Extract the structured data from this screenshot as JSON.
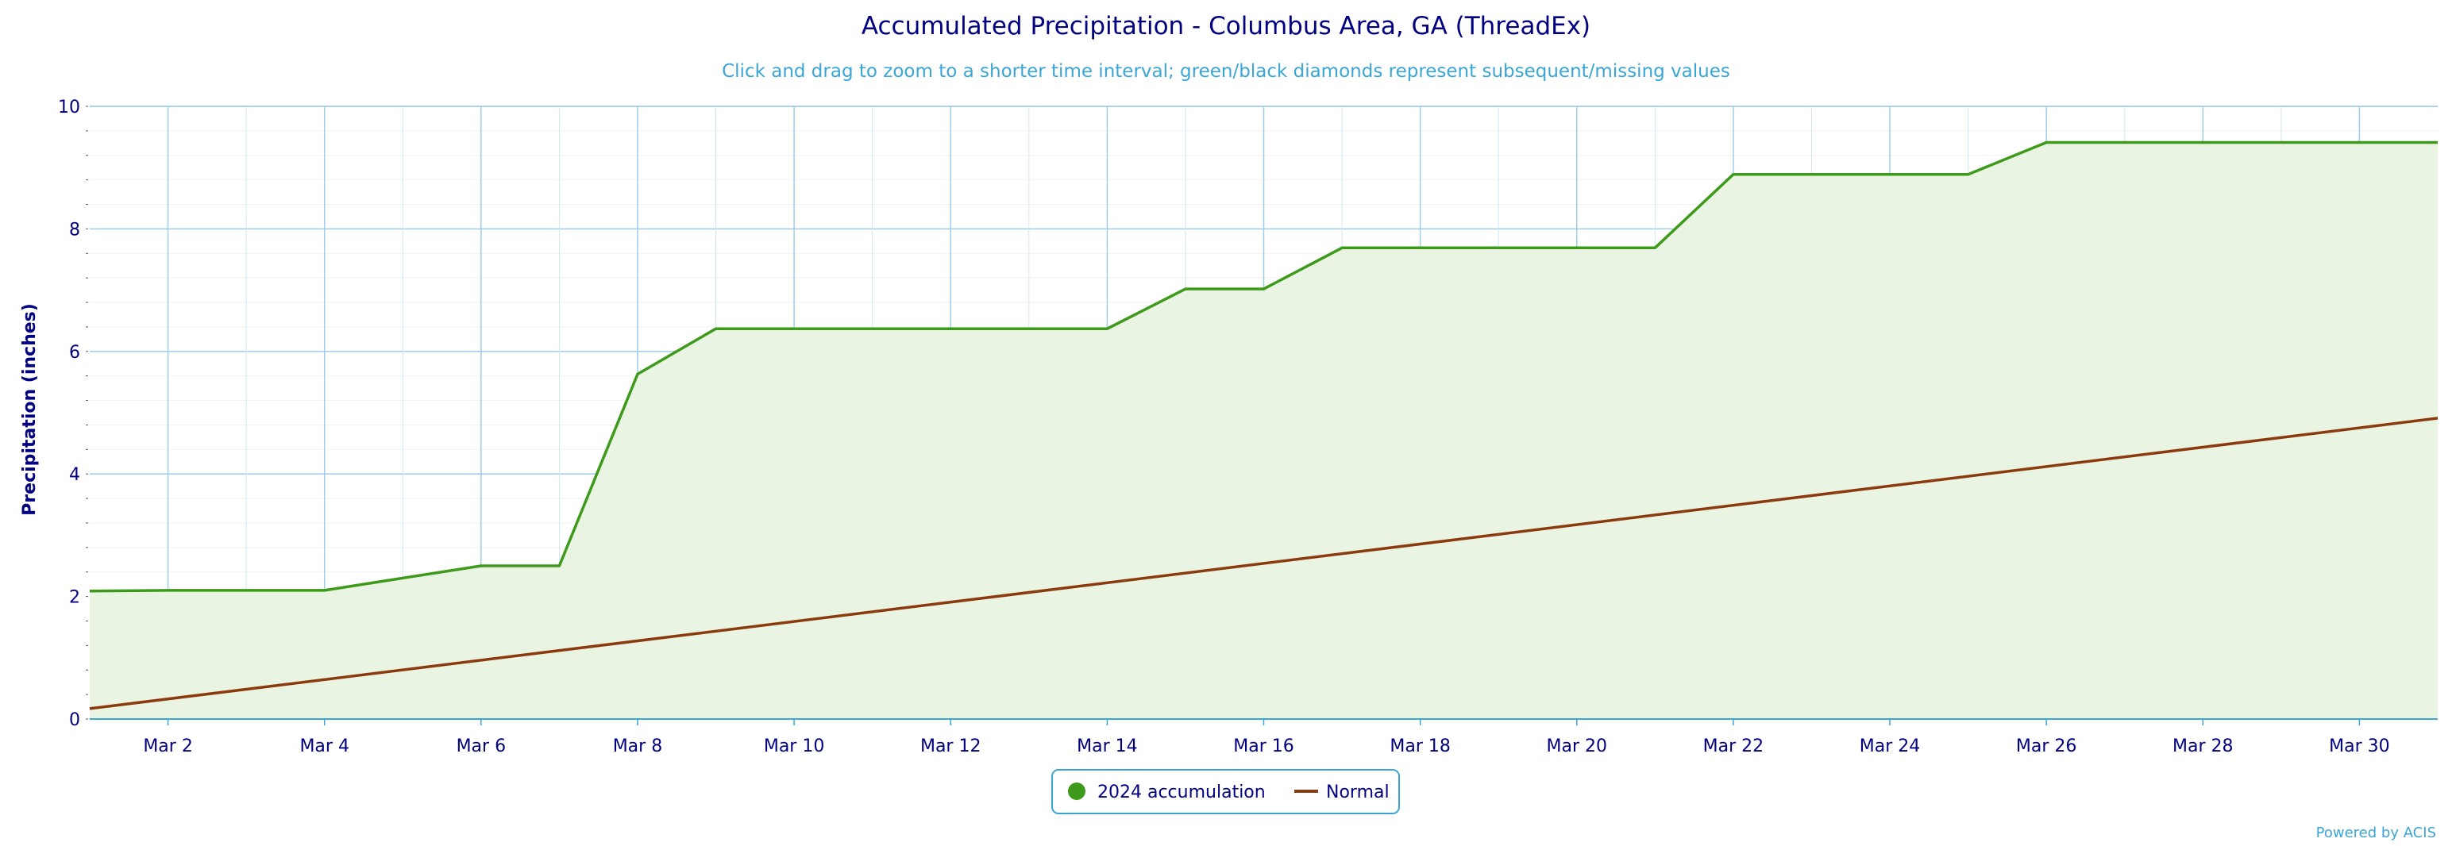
{
  "chart_data": {
    "type": "line",
    "title": "Accumulated Precipitation - Columbus Area, GA (ThreadEx)",
    "subtitle": "Click and drag to zoom to a shorter time interval; green/black diamonds represent subsequent/missing values",
    "xlabel": "",
    "ylabel": "Precipitation (inches)",
    "ylim": [
      0,
      10
    ],
    "xlim": [
      1,
      31
    ],
    "y_ticks": [
      "0",
      "2",
      "4",
      "6",
      "8",
      "10"
    ],
    "x_ticks": [
      {
        "day": 2,
        "label": "Mar 2"
      },
      {
        "day": 4,
        "label": "Mar 4"
      },
      {
        "day": 6,
        "label": "Mar 6"
      },
      {
        "day": 8,
        "label": "Mar 8"
      },
      {
        "day": 10,
        "label": "Mar 10"
      },
      {
        "day": 12,
        "label": "Mar 12"
      },
      {
        "day": 14,
        "label": "Mar 14"
      },
      {
        "day": 16,
        "label": "Mar 16"
      },
      {
        "day": 18,
        "label": "Mar 18"
      },
      {
        "day": 20,
        "label": "Mar 20"
      },
      {
        "day": 22,
        "label": "Mar 22"
      },
      {
        "day": 24,
        "label": "Mar 24"
      },
      {
        "day": 26,
        "label": "Mar 26"
      },
      {
        "day": 28,
        "label": "Mar 28"
      },
      {
        "day": 30,
        "label": "Mar 30"
      }
    ],
    "grid": true,
    "legend_position": "bottom-center",
    "series": [
      {
        "name": "2024 accumulation",
        "color": "#3d9a1a",
        "fill": "#e9f4e2",
        "area": true,
        "x": [
          1,
          2,
          3,
          4,
          5,
          6,
          7,
          8,
          9,
          10,
          11,
          12,
          13,
          14,
          15,
          16,
          17,
          18,
          19,
          20,
          21,
          22,
          23,
          24,
          25,
          26,
          27,
          28,
          29,
          30,
          31
        ],
        "values": [
          2.09,
          2.1,
          2.1,
          2.1,
          2.3,
          2.5,
          2.5,
          5.63,
          6.37,
          6.37,
          6.37,
          6.37,
          6.37,
          6.37,
          7.02,
          7.02,
          7.69,
          7.69,
          7.69,
          7.69,
          7.69,
          8.89,
          8.89,
          8.89,
          8.89,
          9.41,
          9.41,
          9.41,
          9.41,
          9.41,
          9.41
        ]
      },
      {
        "name": "Normal",
        "color": "#8b3a0e",
        "area": false,
        "x": [
          1,
          31
        ],
        "values": [
          0.17,
          4.91
        ]
      }
    ]
  },
  "credit": "Powered by ACIS"
}
